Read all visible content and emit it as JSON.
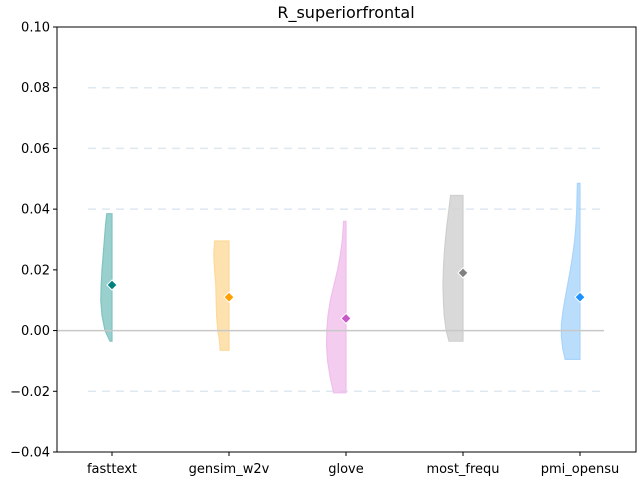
{
  "chart_data": {
    "type": "violin",
    "title": "R_superiorfrontal",
    "xlabel": "",
    "ylabel": "",
    "ylim": [
      -0.04,
      0.1
    ],
    "y_ticks": [
      -0.04,
      -0.02,
      0.0,
      0.02,
      0.04,
      0.06,
      0.08,
      0.1
    ],
    "y_tick_labels": [
      "−0.04",
      "−0.02",
      "0.00",
      "0.02",
      "0.04",
      "0.06",
      "0.08",
      "0.10"
    ],
    "grid_y_dashed": [
      -0.02,
      0.04,
      0.06,
      0.08
    ],
    "zero_line": 0.0,
    "categories": [
      "fasttext",
      "gensim_w2v",
      "glove",
      "most_frequ",
      "pmi_opensu"
    ],
    "series": [
      {
        "category": "fasttext",
        "fill_color": "#80c4c0",
        "marker_color": "#008080",
        "mean": 0.015,
        "min": -0.0035,
        "max": 0.0385,
        "profile": [
          [
            -0.0035,
            0.1
          ],
          [
            0.0,
            0.35
          ],
          [
            0.005,
            0.5
          ],
          [
            0.01,
            0.56
          ],
          [
            0.015,
            0.54
          ],
          [
            0.02,
            0.5
          ],
          [
            0.025,
            0.44
          ],
          [
            0.03,
            0.38
          ],
          [
            0.035,
            0.32
          ],
          [
            0.0385,
            0.26
          ]
        ]
      },
      {
        "category": "gensim_w2v",
        "fill_color": "#fdd99a",
        "marker_color": "#ff9f00",
        "mean": 0.011,
        "min": -0.0065,
        "max": 0.0295,
        "profile": [
          [
            -0.0065,
            0.44
          ],
          [
            -0.003,
            0.48
          ],
          [
            0.0,
            0.56
          ],
          [
            0.005,
            0.62
          ],
          [
            0.01,
            0.64
          ],
          [
            0.015,
            0.66
          ],
          [
            0.02,
            0.72
          ],
          [
            0.025,
            0.76
          ],
          [
            0.0295,
            0.72
          ]
        ]
      },
      {
        "category": "glove",
        "fill_color": "#f0bfec",
        "marker_color": "#c85ac8",
        "mean": 0.004,
        "min": -0.0205,
        "max": 0.036,
        "profile": [
          [
            -0.0205,
            0.62
          ],
          [
            -0.015,
            0.8
          ],
          [
            -0.01,
            0.92
          ],
          [
            -0.005,
            0.97
          ],
          [
            0.0,
            0.96
          ],
          [
            0.005,
            0.9
          ],
          [
            0.01,
            0.78
          ],
          [
            0.015,
            0.6
          ],
          [
            0.02,
            0.42
          ],
          [
            0.025,
            0.28
          ],
          [
            0.03,
            0.18
          ],
          [
            0.036,
            0.12
          ]
        ]
      },
      {
        "category": "most_frequ",
        "fill_color": "#cfcfcf",
        "marker_color": "#808080",
        "mean": 0.019,
        "min": -0.0035,
        "max": 0.0445,
        "profile": [
          [
            -0.0035,
            0.7
          ],
          [
            0.0,
            0.84
          ],
          [
            0.005,
            0.94
          ],
          [
            0.01,
            0.98
          ],
          [
            0.015,
            1.0
          ],
          [
            0.02,
            0.98
          ],
          [
            0.025,
            0.94
          ],
          [
            0.03,
            0.88
          ],
          [
            0.035,
            0.8
          ],
          [
            0.04,
            0.7
          ],
          [
            0.0445,
            0.62
          ]
        ]
      },
      {
        "category": "pmi_opensu",
        "fill_color": "#a9d4fb",
        "marker_color": "#1e90ff",
        "mean": 0.011,
        "min": -0.0095,
        "max": 0.0485,
        "profile": [
          [
            -0.0095,
            0.74
          ],
          [
            -0.006,
            0.86
          ],
          [
            -0.002,
            0.93
          ],
          [
            0.002,
            0.93
          ],
          [
            0.006,
            0.86
          ],
          [
            0.01,
            0.76
          ],
          [
            0.015,
            0.62
          ],
          [
            0.02,
            0.48
          ],
          [
            0.025,
            0.36
          ],
          [
            0.03,
            0.26
          ],
          [
            0.035,
            0.2
          ],
          [
            0.04,
            0.16
          ],
          [
            0.0485,
            0.13
          ]
        ]
      }
    ]
  }
}
